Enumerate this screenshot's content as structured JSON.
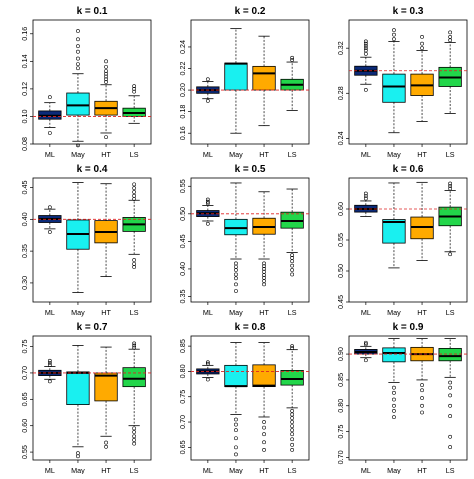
{
  "colors": {
    "ML": "#0b2a78",
    "May": "#19f0f0",
    "HT": "#ffaa00",
    "LS": "#22d64a",
    "median": "#000000",
    "reference_line": "#dd2222",
    "outlier": "#000000"
  },
  "chart_data": [
    {
      "type": "box",
      "title": "k = 0.1",
      "categories": [
        "ML",
        "May",
        "HT",
        "LS"
      ],
      "ylim": [
        0.08,
        0.17
      ],
      "yticks": [
        0.08,
        0.1,
        0.12,
        0.14,
        0.16
      ],
      "ytick_labels": [
        "0.08",
        "0.10",
        "0.12",
        "0.14",
        "0.16"
      ],
      "reference": 0.1,
      "boxes": [
        {
          "name": "ML",
          "whislo": 0.092,
          "q1": 0.098,
          "med": 0.1005,
          "q3": 0.104,
          "whishi": 0.11,
          "outliers": [
            0.088,
            0.114
          ]
        },
        {
          "name": "May",
          "whislo": 0.082,
          "q1": 0.101,
          "med": 0.108,
          "q3": 0.117,
          "whishi": 0.131,
          "outliers": [
            0.079,
            0.135,
            0.138,
            0.142,
            0.147,
            0.151,
            0.156,
            0.162
          ]
        },
        {
          "name": "HT",
          "whislo": 0.088,
          "q1": 0.101,
          "med": 0.106,
          "q3": 0.111,
          "whishi": 0.123,
          "outliers": [
            0.085,
            0.125,
            0.127,
            0.129,
            0.131,
            0.133,
            0.136,
            0.14
          ]
        },
        {
          "name": "LS",
          "whislo": 0.095,
          "q1": 0.1,
          "med": 0.1025,
          "q3": 0.106,
          "whishi": 0.115,
          "outliers": [
            0.118,
            0.12,
            0.122
          ]
        }
      ]
    },
    {
      "type": "box",
      "title": "k = 0.2",
      "categories": [
        "ML",
        "May",
        "HT",
        "LS"
      ],
      "ylim": [
        0.15,
        0.265
      ],
      "yticks": [
        0.16,
        0.18,
        0.2,
        0.22,
        0.24
      ],
      "ytick_labels": [
        "0.16",
        "0.18",
        "0.20",
        "0.22",
        "0.24"
      ],
      "reference": 0.2,
      "boxes": [
        {
          "name": "ML",
          "whislo": 0.192,
          "q1": 0.197,
          "med": 0.2,
          "q3": 0.203,
          "whishi": 0.208,
          "outliers": [
            0.19,
            0.21
          ]
        },
        {
          "name": "May",
          "whislo": 0.16,
          "q1": 0.2,
          "med": 0.2245,
          "q3": 0.225,
          "whishi": 0.257,
          "outliers": []
        },
        {
          "name": "HT",
          "whislo": 0.167,
          "q1": 0.2,
          "med": 0.2155,
          "q3": 0.222,
          "whishi": 0.25,
          "outliers": []
        },
        {
          "name": "LS",
          "whislo": 0.181,
          "q1": 0.2,
          "med": 0.205,
          "q3": 0.21,
          "whishi": 0.226,
          "outliers": [
            0.228,
            0.23
          ]
        }
      ]
    },
    {
      "type": "box",
      "title": "k = 0.3",
      "categories": [
        "ML",
        "May",
        "HT",
        "LS"
      ],
      "ylim": [
        0.235,
        0.345
      ],
      "yticks": [
        0.24,
        0.28,
        0.32
      ],
      "ytick_labels": [
        "0.24",
        "0.28",
        "0.32"
      ],
      "reference": 0.3,
      "boxes": [
        {
          "name": "ML",
          "whislo": 0.288,
          "q1": 0.296,
          "med": 0.3,
          "q3": 0.304,
          "whishi": 0.312,
          "outliers": [
            0.283,
            0.315,
            0.318,
            0.32,
            0.322,
            0.324,
            0.326
          ]
        },
        {
          "name": "May",
          "whislo": 0.245,
          "q1": 0.272,
          "med": 0.286,
          "q3": 0.297,
          "whishi": 0.326,
          "outliers": [
            0.328,
            0.332,
            0.336
          ]
        },
        {
          "name": "HT",
          "whislo": 0.255,
          "q1": 0.278,
          "med": 0.287,
          "q3": 0.297,
          "whishi": 0.318,
          "outliers": [
            0.32,
            0.324,
            0.33
          ]
        },
        {
          "name": "LS",
          "whislo": 0.262,
          "q1": 0.286,
          "med": 0.294,
          "q3": 0.303,
          "whishi": 0.325,
          "outliers": [
            0.327,
            0.33,
            0.334
          ]
        }
      ]
    },
    {
      "type": "box",
      "title": "k = 0.4",
      "categories": [
        "ML",
        "May",
        "HT",
        "LS"
      ],
      "ylim": [
        0.27,
        0.465
      ],
      "yticks": [
        0.3,
        0.35,
        0.4,
        0.45
      ],
      "ytick_labels": [
        "0.30",
        "0.35",
        "0.40",
        "0.45"
      ],
      "reference": 0.4,
      "boxes": [
        {
          "name": "ML",
          "whislo": 0.385,
          "q1": 0.395,
          "med": 0.4005,
          "q3": 0.406,
          "whishi": 0.416,
          "outliers": [
            0.38,
            0.419
          ]
        },
        {
          "name": "May",
          "whislo": 0.285,
          "q1": 0.353,
          "med": 0.377,
          "q3": 0.399,
          "whishi": 0.458,
          "outliers": []
        },
        {
          "name": "HT",
          "whislo": 0.31,
          "q1": 0.363,
          "med": 0.38,
          "q3": 0.398,
          "whishi": 0.456,
          "outliers": []
        },
        {
          "name": "LS",
          "whislo": 0.345,
          "q1": 0.381,
          "med": 0.392,
          "q3": 0.403,
          "whishi": 0.43,
          "outliers": [
            0.336,
            0.33,
            0.325,
            0.432,
            0.437,
            0.443,
            0.449,
            0.455
          ]
        }
      ]
    },
    {
      "type": "box",
      "title": "k = 0.5",
      "categories": [
        "ML",
        "May",
        "HT",
        "LS"
      ],
      "ylim": [
        0.34,
        0.565
      ],
      "yticks": [
        0.35,
        0.4,
        0.45,
        0.5,
        0.55
      ],
      "ytick_labels": [
        "0.35",
        "0.40",
        "0.45",
        "0.50",
        "0.55"
      ],
      "reference": 0.5,
      "boxes": [
        {
          "name": "ML",
          "whislo": 0.487,
          "q1": 0.495,
          "med": 0.501,
          "q3": 0.506,
          "whishi": 0.515,
          "outliers": [
            0.482,
            0.519,
            0.522,
            0.526
          ]
        },
        {
          "name": "May",
          "whislo": 0.418,
          "q1": 0.462,
          "med": 0.474,
          "q3": 0.49,
          "whishi": 0.556,
          "outliers": [
            0.41,
            0.404,
            0.398,
            0.39,
            0.383,
            0.372,
            0.36
          ]
        },
        {
          "name": "HT",
          "whislo": 0.418,
          "q1": 0.463,
          "med": 0.476,
          "q3": 0.492,
          "whishi": 0.54,
          "outliers": [
            0.41,
            0.405,
            0.4,
            0.395,
            0.389,
            0.384,
            0.378,
            0.372
          ]
        },
        {
          "name": "LS",
          "whislo": 0.43,
          "q1": 0.474,
          "med": 0.487,
          "q3": 0.503,
          "whishi": 0.545,
          "outliers": [
            0.425,
            0.42,
            0.414,
            0.406,
            0.398,
            0.39
          ]
        }
      ]
    },
    {
      "type": "box",
      "title": "k = 0.6",
      "categories": [
        "ML",
        "May",
        "HT",
        "LS"
      ],
      "ylim": [
        0.45,
        0.65
      ],
      "yticks": [
        0.45,
        0.5,
        0.55,
        0.6
      ],
      "ytick_labels": [
        "0.45",
        "0.50",
        "0.55",
        "0.60"
      ],
      "reference": 0.6,
      "boxes": [
        {
          "name": "ML",
          "whislo": 0.588,
          "q1": 0.595,
          "med": 0.6,
          "q3": 0.606,
          "whishi": 0.613,
          "outliers": [
            0.617,
            0.621,
            0.625
          ]
        },
        {
          "name": "May",
          "whislo": 0.505,
          "q1": 0.545,
          "med": 0.579,
          "q3": 0.583,
          "whishi": 0.642,
          "outliers": []
        },
        {
          "name": "HT",
          "whislo": 0.517,
          "q1": 0.552,
          "med": 0.571,
          "q3": 0.587,
          "whishi": 0.643,
          "outliers": []
        },
        {
          "name": "LS",
          "whislo": 0.531,
          "q1": 0.573,
          "med": 0.588,
          "q3": 0.603,
          "whishi": 0.63,
          "outliers": [
            0.527,
            0.633,
            0.637,
            0.641
          ]
        }
      ]
    },
    {
      "type": "box",
      "title": "k = 0.7",
      "categories": [
        "ML",
        "May",
        "HT",
        "LS"
      ],
      "ylim": [
        0.535,
        0.77
      ],
      "yticks": [
        0.55,
        0.6,
        0.65,
        0.7,
        0.75
      ],
      "ytick_labels": [
        "0.55",
        "0.60",
        "0.65",
        "0.70",
        "0.75"
      ],
      "reference": 0.7,
      "boxes": [
        {
          "name": "ML",
          "whislo": 0.688,
          "q1": 0.695,
          "med": 0.7,
          "q3": 0.705,
          "whishi": 0.712,
          "outliers": [
            0.684,
            0.715,
            0.719,
            0.723
          ]
        },
        {
          "name": "May",
          "whislo": 0.56,
          "q1": 0.64,
          "med": 0.7,
          "q3": 0.702,
          "whishi": 0.752,
          "outliers": [
            0.548,
            0.542
          ]
        },
        {
          "name": "HT",
          "whislo": 0.58,
          "q1": 0.647,
          "med": 0.695,
          "q3": 0.7,
          "whishi": 0.749,
          "outliers": [
            0.568,
            0.56
          ]
        },
        {
          "name": "LS",
          "whislo": 0.6,
          "q1": 0.674,
          "med": 0.689,
          "q3": 0.71,
          "whishi": 0.745,
          "outliers": [
            0.595,
            0.588,
            0.58,
            0.573,
            0.566,
            0.748,
            0.752,
            0.756
          ]
        }
      ]
    },
    {
      "type": "box",
      "title": "k = 0.8",
      "categories": [
        "ML",
        "May",
        "HT",
        "LS"
      ],
      "ylim": [
        0.625,
        0.87
      ],
      "yticks": [
        0.65,
        0.7,
        0.75,
        0.8,
        0.85
      ],
      "ytick_labels": [
        "0.65",
        "0.70",
        "0.75",
        "0.80",
        "0.85"
      ],
      "reference": 0.8,
      "boxes": [
        {
          "name": "ML",
          "whislo": 0.788,
          "q1": 0.795,
          "med": 0.8,
          "q3": 0.805,
          "whishi": 0.812,
          "outliers": [
            0.784,
            0.815,
            0.818
          ]
        },
        {
          "name": "May",
          "whislo": 0.715,
          "q1": 0.77,
          "med": 0.771,
          "q3": 0.812,
          "whishi": 0.857,
          "outliers": [
            0.705,
            0.695,
            0.684,
            0.668,
            0.65,
            0.636
          ]
        },
        {
          "name": "HT",
          "whislo": 0.71,
          "q1": 0.77,
          "med": 0.772,
          "q3": 0.813,
          "whishi": 0.857,
          "outliers": [
            0.7,
            0.689,
            0.676,
            0.66,
            0.645
          ]
        },
        {
          "name": "LS",
          "whislo": 0.728,
          "q1": 0.773,
          "med": 0.785,
          "q3": 0.802,
          "whishi": 0.843,
          "outliers": [
            0.722,
            0.715,
            0.708,
            0.7,
            0.692,
            0.684,
            0.676,
            0.666,
            0.655,
            0.645,
            0.846,
            0.85
          ]
        }
      ]
    },
    {
      "type": "box",
      "title": "k = 0.9",
      "categories": [
        "ML",
        "May",
        "HT",
        "LS"
      ],
      "ylim": [
        0.695,
        0.935
      ],
      "yticks": [
        0.7,
        0.75,
        0.8,
        0.85,
        0.9
      ],
      "ytick_labels": [
        "0.70",
        "0.75",
        "0.80",
        "0.85",
        "0.90"
      ],
      "reference": 0.9,
      "boxes": [
        {
          "name": "ML",
          "whislo": 0.893,
          "q1": 0.9,
          "med": 0.904,
          "q3": 0.909,
          "whishi": 0.915,
          "outliers": [
            0.888,
            0.919,
            0.922
          ]
        },
        {
          "name": "May",
          "whislo": 0.845,
          "q1": 0.885,
          "med": 0.902,
          "q3": 0.912,
          "whishi": 0.93,
          "outliers": [
            0.835,
            0.825,
            0.812,
            0.8,
            0.79,
            0.778
          ]
        },
        {
          "name": "HT",
          "whislo": 0.85,
          "q1": 0.887,
          "med": 0.9,
          "q3": 0.913,
          "whishi": 0.93,
          "outliers": [
            0.84,
            0.83,
            0.815,
            0.8,
            0.787
          ]
        },
        {
          "name": "LS",
          "whislo": 0.855,
          "q1": 0.887,
          "med": 0.896,
          "q3": 0.911,
          "whishi": 0.93,
          "outliers": [
            0.845,
            0.835,
            0.82,
            0.8,
            0.78,
            0.74,
            0.72
          ]
        }
      ]
    }
  ]
}
